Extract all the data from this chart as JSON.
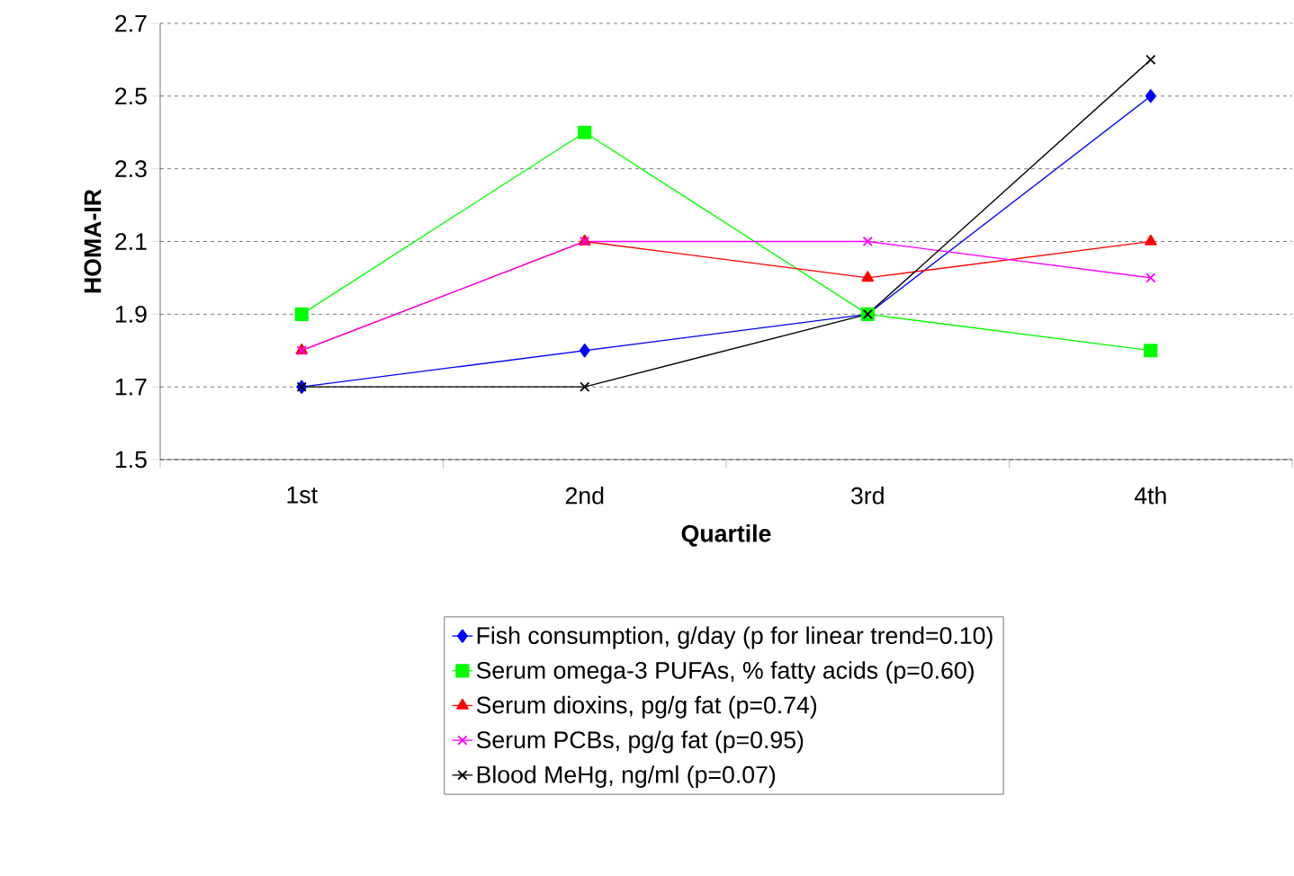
{
  "chart_data": {
    "type": "line",
    "xlabel": "Quartile",
    "ylabel": "HOMA-IR",
    "categories": [
      "1st",
      "2nd",
      "3rd",
      "4th"
    ],
    "ylim": [
      1.5,
      2.7
    ],
    "yticks": [
      1.5,
      1.7,
      1.9,
      2.1,
      2.3,
      2.5,
      2.7
    ],
    "grid": "y",
    "legend": "bottom",
    "series": [
      {
        "name": "Fish consumption, g/day (p for linear trend=0.10)",
        "color": "#0000ff",
        "marker": "diamond",
        "values": [
          1.7,
          1.8,
          1.9,
          2.5
        ]
      },
      {
        "name": "Serum omega-3 PUFAs, % fatty acids (p=0.60)",
        "color": "#00ff00",
        "marker": "square",
        "values": [
          1.9,
          2.4,
          1.9,
          1.8
        ]
      },
      {
        "name": "Serum dioxins, pg/g fat (p=0.74)",
        "color": "#ff0000",
        "marker": "triangle",
        "values": [
          1.8,
          2.1,
          2.0,
          2.1
        ]
      },
      {
        "name": "Serum PCBs, pg/g fat (p=0.95)",
        "color": "#ff00ff",
        "marker": "cross",
        "values": [
          1.8,
          2.1,
          2.1,
          2.0
        ]
      },
      {
        "name": "Blood MeHg, ng/ml (p=0.07)",
        "color": "#000000",
        "marker": "cross",
        "values": [
          1.7,
          1.7,
          1.9,
          2.6
        ]
      }
    ]
  }
}
